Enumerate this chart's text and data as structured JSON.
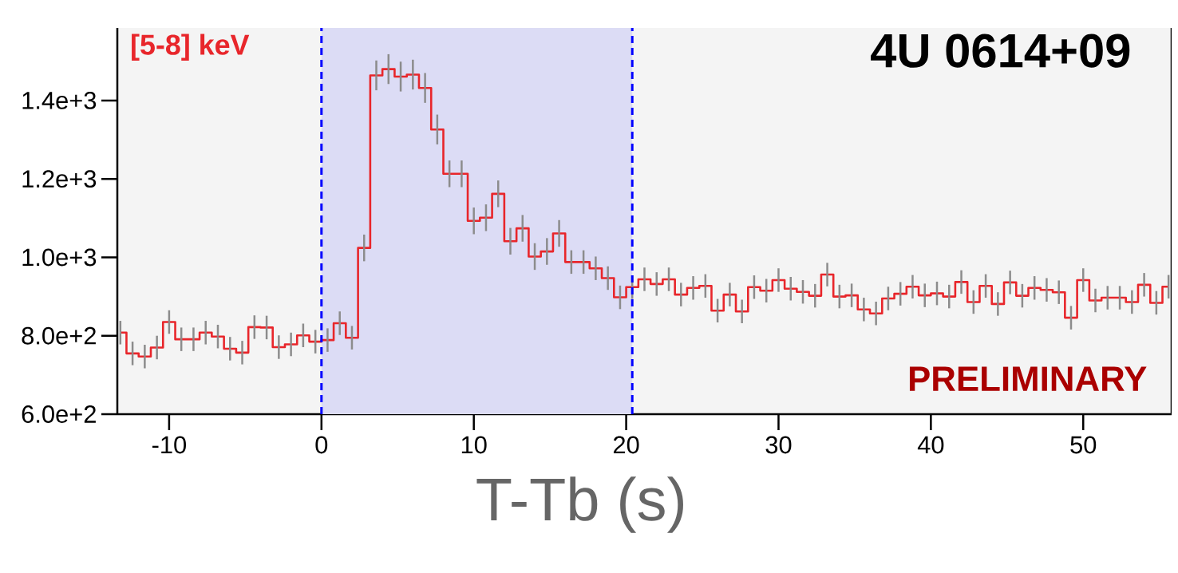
{
  "chart_data": {
    "type": "step",
    "xlabel": "T-Tb (s)",
    "annotations": [
      "[5-8] keV",
      "4U 0614+09",
      "PRELIMINARY"
    ],
    "x": [
      -13.2,
      -12.4,
      -11.6,
      -10.8,
      -10,
      -9.2,
      -8.4,
      -7.6,
      -6.8,
      -6,
      -5.2,
      -4.4,
      -3.6,
      -2.8,
      -2,
      -1.2,
      -0.4,
      0.4,
      1.2,
      2,
      2.8,
      3.6,
      4.4,
      5.2,
      6,
      6.8,
      7.6,
      8.4,
      9.2,
      10,
      10.8,
      11.6,
      12.4,
      13.2,
      14,
      14.8,
      15.6,
      16.4,
      17.2,
      18,
      18.8,
      19.6,
      20.4,
      21.2,
      22,
      22.8,
      23.6,
      24.4,
      25.2,
      26,
      26.8,
      27.6,
      28.4,
      29.2,
      30,
      30.8,
      31.6,
      32.4,
      33.2,
      34,
      34.8,
      35.6,
      36.4,
      37.2,
      38,
      38.8,
      39.6,
      40.4,
      41.2,
      42,
      42.8,
      43.6,
      44.4,
      45.2,
      46,
      46.8,
      47.6,
      48.4,
      49.2,
      50,
      50.8,
      51.6,
      52.4,
      53.2,
      54,
      54.8,
      55.6
    ],
    "series": [
      {
        "color": "#e8262b",
        "values": [
          808,
          755,
          747,
          770,
          835,
          791,
          791,
          808,
          798,
          767,
          757,
          822,
          821,
          771,
          778,
          801,
          785,
          789,
          832,
          795,
          1024,
          1464,
          1480,
          1461,
          1466,
          1432,
          1326,
          1213,
          1213,
          1093,
          1101,
          1162,
          1041,
          1074,
          1002,
          1015,
          1061,
          988,
          988,
          972,
          947,
          898,
          924,
          944,
          932,
          944,
          905,
          922,
          927,
          864,
          905,
          862,
          924,
          915,
          942,
          920,
          912,
          902,
          956,
          900,
          903,
          867,
          857,
          895,
          907,
          925,
          903,
          908,
          900,
          937,
          886,
          927,
          881,
          936,
          902,
          922,
          917,
          911,
          846,
          942,
          890,
          897,
          897,
          886,
          930,
          884,
          925
        ],
        "errors": [
          30,
          30,
          30,
          30,
          30,
          30,
          30,
          30,
          30,
          30,
          30,
          30,
          30,
          30,
          30,
          30,
          30,
          30,
          30,
          30,
          34,
          38,
          38,
          38,
          38,
          38,
          38,
          34,
          34,
          34,
          34,
          34,
          34,
          34,
          34,
          34,
          34,
          30,
          30,
          30,
          30,
          30,
          30,
          30,
          30,
          30,
          30,
          30,
          30,
          30,
          30,
          30,
          30,
          30,
          30,
          30,
          30,
          30,
          30,
          30,
          30,
          30,
          30,
          30,
          30,
          30,
          30,
          30,
          30,
          30,
          30,
          30,
          30,
          30,
          30,
          30,
          30,
          30,
          30,
          30,
          30,
          30,
          30,
          30,
          30,
          30,
          30
        ]
      }
    ],
    "xlim": [
      -13.4,
      55.8
    ],
    "ylim": [
      600,
      1585
    ],
    "xticks": [
      -10,
      0,
      10,
      20,
      30,
      40,
      50
    ],
    "yticks": [
      {
        "value": 600,
        "label": "6.0e+2"
      },
      {
        "value": 800,
        "label": "8.0e+2"
      },
      {
        "value": 1000,
        "label": "1.0e+3"
      },
      {
        "value": 1200,
        "label": "1.2e+3"
      },
      {
        "value": 1400,
        "label": "1.4e+3"
      }
    ],
    "bands": [
      {
        "axis": "x",
        "from": 0,
        "to": 20.4,
        "color": "#dcdcf5"
      }
    ],
    "ref_lines": [
      {
        "axis": "x",
        "value": 0,
        "color": "#0000ff",
        "line_style": "dashed"
      },
      {
        "axis": "x",
        "value": 20.4,
        "color": "#0000ff",
        "line_style": "dashed"
      }
    ]
  }
}
